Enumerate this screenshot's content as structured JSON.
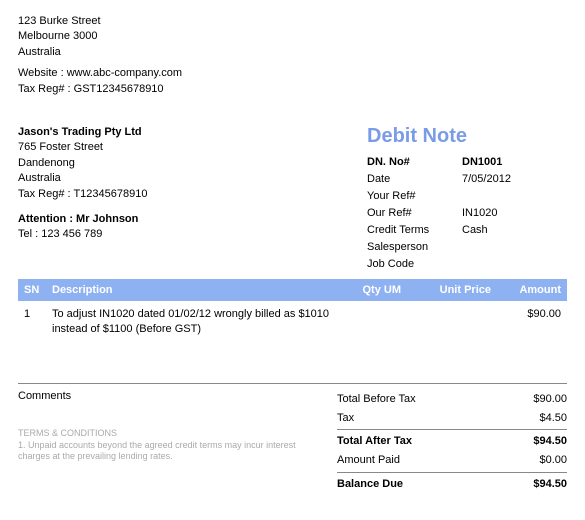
{
  "company": {
    "address1": "123 Burke Street",
    "address2": "Melbourne 3000",
    "country": "Australia",
    "website_label": "Website : www.abc-company.com",
    "taxreg_label": "Tax Reg# : GST12345678910"
  },
  "bill_to": {
    "name": "Jason's Trading Pty Ltd",
    "street": "765 Foster Street",
    "city": "Dandenong",
    "country": "Australia",
    "taxreg": "Tax Reg# : T12345678910",
    "attention_label": "Attention : Mr Johnson",
    "tel": "Tel : 123 456 789"
  },
  "doc": {
    "title": "Debit Note",
    "fields": {
      "dn_no_label": "DN. No#",
      "dn_no": "DN1001",
      "date_label": "Date",
      "date": "7/05/2012",
      "your_ref_label": "Your Ref#",
      "your_ref": "",
      "our_ref_label": "Our Ref#",
      "our_ref": "IN1020",
      "credit_terms_label": "Credit Terms",
      "credit_terms": "Cash",
      "salesperson_label": "Salesperson",
      "salesperson": "",
      "job_code_label": "Job Code",
      "job_code": ""
    }
  },
  "columns": {
    "sn": "SN",
    "desc": "Description",
    "qty": "Qty UM",
    "unit": "Unit Price",
    "amt": "Amount"
  },
  "items": [
    {
      "sn": "1",
      "description": "To adjust IN1020 dated 01/02/12 wrongly billed as $1010 instead of $1100 (Before GST)",
      "qty": "",
      "unit": "",
      "amount": "$90.00"
    }
  ],
  "comments_label": "Comments",
  "terms": {
    "header": "TERMS & CONDITIONS",
    "line1": "1. Unpaid accounts beyond the agreed credit terms may incur interest charges at the prevailing lending rates."
  },
  "totals": {
    "before_tax_label": "Total Before Tax",
    "before_tax": "$90.00",
    "tax_label": "Tax",
    "tax": "$4.50",
    "after_tax_label": "Total After Tax",
    "after_tax": "$94.50",
    "paid_label": "Amount Paid",
    "paid": "$0.00",
    "balance_label": "Balance Due",
    "balance": "$94.50"
  },
  "colors": {
    "header_bg": "#8eb1f2",
    "title": "#7a9be8"
  }
}
